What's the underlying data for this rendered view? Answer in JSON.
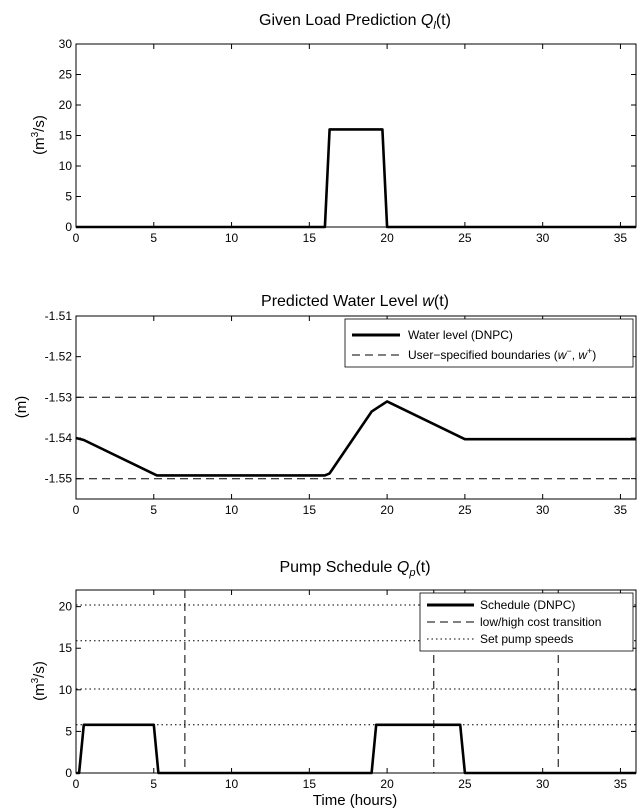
{
  "chart_data": [
    {
      "type": "line",
      "title": "Given Load Prediction Q_l(t)",
      "title_text": "Given Load Prediction ",
      "title_var": "Q",
      "title_sub": "l",
      "title_arg": "(t)",
      "ylabel_pre": "(m",
      "ylabel_sup": "3",
      "ylabel_post": "/s)",
      "xlabel": "",
      "xlim": [
        0,
        36
      ],
      "ylim": [
        0,
        30
      ],
      "xticks": [
        0,
        5,
        10,
        15,
        20,
        25,
        30,
        35
      ],
      "xtick_labels": [
        "0",
        "5",
        "10",
        "15",
        "20",
        "25",
        "30",
        "35"
      ],
      "yticks": [
        0,
        5,
        10,
        15,
        20,
        25,
        30
      ],
      "ytick_labels": [
        "0",
        "5",
        "10",
        "15",
        "20",
        "25",
        "30"
      ],
      "grid": false,
      "series": [
        {
          "style": "solid-thick",
          "color": "#000000",
          "x": [
            0,
            16,
            16.3,
            19.7,
            20,
            36
          ],
          "y": [
            0,
            0,
            16,
            16,
            0,
            0
          ]
        }
      ]
    },
    {
      "type": "line",
      "title": "Predicted Water Level w(t)",
      "title_text": "Predicted Water Level ",
      "title_var": "w",
      "title_arg": "(t)",
      "ylabel": "(m)",
      "xlabel": "",
      "xlim": [
        0,
        36
      ],
      "ylim": [
        -1.555,
        -1.51
      ],
      "xticks": [
        0,
        5,
        10,
        15,
        20,
        25,
        30,
        35
      ],
      "xtick_labels": [
        "0",
        "5",
        "10",
        "15",
        "20",
        "25",
        "30",
        "35"
      ],
      "yticks": [
        -1.51,
        -1.52,
        -1.53,
        -1.54,
        -1.55
      ],
      "ytick_labels": [
        "-1.51",
        "-1.52",
        "-1.53",
        "-1.54",
        "-1.55"
      ],
      "grid": false,
      "legend_position": "top-right",
      "legend": [
        {
          "label": "Water level (DNPC)",
          "style": "solid-thick"
        },
        {
          "label_pre": "User−specified boundaries (",
          "label_w1": "w",
          "label_sup1": "−",
          "label_mid": ", ",
          "label_w2": "w",
          "label_sup2": "+",
          "label_post": ")",
          "style": "dashed"
        }
      ],
      "series": [
        {
          "style": "solid-thick",
          "color": "#000000",
          "x": [
            0,
            0.5,
            5.2,
            16,
            16.3,
            19,
            20,
            25,
            36
          ],
          "y": [
            -1.54,
            -1.5405,
            -1.5492,
            -1.5492,
            -1.5487,
            -1.5335,
            -1.531,
            -1.5403,
            -1.5403
          ]
        },
        {
          "style": "dashed",
          "color": "#000000",
          "x": [
            0,
            36
          ],
          "y": [
            -1.53,
            -1.53
          ]
        },
        {
          "style": "dashed",
          "color": "#000000",
          "x": [
            0,
            36
          ],
          "y": [
            -1.55,
            -1.55
          ]
        }
      ]
    },
    {
      "type": "line",
      "title": "Pump Schedule Q_p(t)",
      "title_text": "Pump Schedule ",
      "title_var": "Q",
      "title_sub": "p",
      "title_arg": "(t)",
      "ylabel_pre": "(m",
      "ylabel_sup": "3",
      "ylabel_post": "/s)",
      "xlabel": "Time (hours)",
      "xlim": [
        0,
        36
      ],
      "ylim": [
        0,
        22
      ],
      "xticks": [
        0,
        5,
        10,
        15,
        20,
        25,
        30,
        35
      ],
      "xtick_labels": [
        "0",
        "5",
        "10",
        "15",
        "20",
        "25",
        "30",
        "35"
      ],
      "yticks": [
        0,
        5,
        10,
        15,
        20
      ],
      "ytick_labels": [
        "0",
        "5",
        "10",
        "15",
        "20"
      ],
      "grid": false,
      "legend_position": "top-right",
      "legend": [
        {
          "label": "Schedule (DNPC)",
          "style": "solid-thick"
        },
        {
          "label": "low/high cost transition",
          "style": "dashed"
        },
        {
          "label": "Set pump speeds",
          "style": "dotted"
        }
      ],
      "pump_speed_levels": [
        5.8,
        10.1,
        15.9,
        20.2
      ],
      "cost_transitions": [
        7,
        23,
        31
      ],
      "series": [
        {
          "style": "solid-thick",
          "color": "#000000",
          "x": [
            0,
            0.2,
            0.5,
            5,
            5.3,
            19,
            19.3,
            24.7,
            25,
            36
          ],
          "y": [
            0,
            0,
            5.8,
            5.8,
            0,
            0,
            5.8,
            5.8,
            0,
            0
          ]
        }
      ]
    }
  ]
}
